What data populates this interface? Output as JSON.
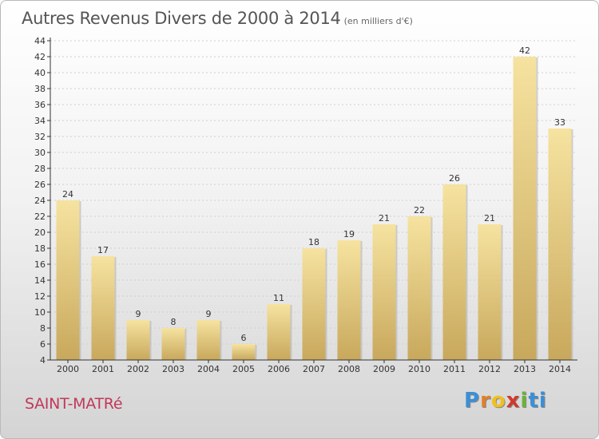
{
  "page": {
    "title": "Autres Revenus Divers de 2000 à 2014",
    "subtitle": "(en milliers d'€)",
    "city": "SAINT-MATRé",
    "logo": {
      "letters": [
        "P",
        "r",
        "o",
        "x",
        "i",
        "t",
        "i"
      ]
    }
  },
  "colors": {
    "bar_light": "#f6e3a0",
    "bar_dark": "#c8a85c",
    "axis": "#333333",
    "grid": "#cfcfcf",
    "city": "#c0395a",
    "title": "#555555"
  },
  "chart_data": {
    "type": "bar",
    "title": "Autres Revenus Divers de 2000 à 2014",
    "subtitle": "(en milliers d'€)",
    "xlabel": "",
    "ylabel": "",
    "ylim": [
      4,
      44
    ],
    "ytick_step": 2,
    "grid": true,
    "legend": "none",
    "categories": [
      "2000",
      "2001",
      "2002",
      "2003",
      "2004",
      "2005",
      "2006",
      "2007",
      "2008",
      "2009",
      "2010",
      "2011",
      "2012",
      "2013",
      "2014"
    ],
    "values": [
      24,
      17,
      9,
      8,
      9,
      6,
      11,
      18,
      19,
      21,
      22,
      26,
      21,
      42,
      33
    ]
  }
}
